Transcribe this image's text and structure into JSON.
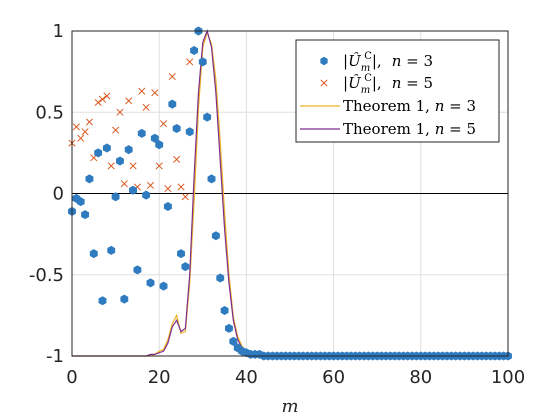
{
  "chart_data": {
    "type": "scatter",
    "xlabel": "m",
    "ylabel": "",
    "xlim": [
      0,
      100
    ],
    "ylim": [
      -1,
      1
    ],
    "xticks": [
      0,
      20,
      40,
      60,
      80,
      100
    ],
    "yticks": [
      -1,
      -0.5,
      0,
      0.5,
      1
    ],
    "xtick_labels": [
      "0",
      "20",
      "40",
      "60",
      "80",
      "100"
    ],
    "ytick_labels": [
      "-1",
      "-0.5",
      "0",
      "0.5",
      "1"
    ],
    "grid": true,
    "zero_line": 0,
    "legend_position": "top-right",
    "series": [
      {
        "name": "|Û_m^C|, n = 3",
        "legend_parts": [
          "|",
          "Û",
          "m",
          "C",
          "|,",
          "n",
          " = 3"
        ],
        "style": "markers",
        "marker": "hexagon",
        "color": "#2e7bbf",
        "x": [
          0,
          1,
          2,
          3,
          4,
          5,
          6,
          7,
          8,
          9,
          10,
          11,
          12,
          13,
          14,
          15,
          16,
          17,
          18,
          19,
          20,
          21,
          22,
          23,
          24,
          25,
          26,
          27,
          28,
          29,
          30,
          31,
          32,
          33,
          34,
          35,
          36,
          37,
          38,
          39,
          40,
          41,
          42,
          43,
          44,
          45,
          46,
          47,
          48,
          49,
          50,
          51,
          52,
          53,
          54,
          55,
          56,
          57,
          58,
          59,
          60,
          61,
          62,
          63,
          64,
          65,
          66,
          67,
          68,
          69,
          70,
          71,
          72,
          73,
          74,
          75,
          76,
          77,
          78,
          79,
          80,
          81,
          82,
          83,
          84,
          85,
          86,
          87,
          88,
          89,
          90,
          91,
          92,
          93,
          94,
          95,
          96,
          97,
          98,
          99,
          100
        ],
        "y": [
          -0.11,
          -0.03,
          -0.05,
          -0.13,
          0.09,
          -0.37,
          0.25,
          -0.66,
          0.28,
          -0.35,
          -0.02,
          0.2,
          -0.65,
          0.27,
          0.02,
          -0.47,
          0.37,
          -0.01,
          -0.55,
          0.34,
          0.3,
          -0.57,
          -0.08,
          0.55,
          0.4,
          -0.37,
          -0.45,
          0.38,
          0.88,
          1.0,
          0.81,
          0.47,
          0.09,
          -0.26,
          -0.52,
          -0.72,
          -0.83,
          -0.91,
          -0.95,
          -0.97,
          -0.98,
          -0.99,
          -0.99,
          -0.99,
          -1,
          -1,
          -1,
          -1,
          -1,
          -1,
          -1,
          -1,
          -1,
          -1,
          -1,
          -1,
          -1,
          -1,
          -1,
          -1,
          -1,
          -1,
          -1,
          -1,
          -1,
          -1,
          -1,
          -1,
          -1,
          -1,
          -1,
          -1,
          -1,
          -1,
          -1,
          -1,
          -1,
          -1,
          -1,
          -1,
          -1,
          -1,
          -1,
          -1,
          -1,
          -1,
          -1,
          -1,
          -1,
          -1,
          -1,
          -1,
          -1,
          -1,
          -1,
          -1,
          -1,
          -1,
          -1,
          -1,
          -1
        ]
      },
      {
        "name": "|Û_m^C|, n = 5",
        "legend_parts": [
          "|",
          "Û",
          "m",
          "C",
          "|,",
          "n",
          " = 5"
        ],
        "style": "markers",
        "marker": "x",
        "color": "#d95319",
        "x": [
          0,
          1,
          2,
          3,
          4,
          5,
          6,
          7,
          8,
          9,
          10,
          11,
          12,
          13,
          14,
          15,
          16,
          17,
          18,
          19,
          20,
          21,
          22,
          23,
          24,
          25,
          26,
          27
        ],
        "y": [
          0.31,
          0.41,
          0.34,
          0.38,
          0.44,
          0.22,
          0.56,
          0.58,
          0.6,
          0.17,
          0.39,
          0.5,
          0.06,
          0.57,
          0.17,
          0.04,
          0.63,
          0.53,
          0.05,
          0.62,
          0.17,
          0.43,
          0.03,
          0.72,
          0.21,
          0.04,
          -0.02,
          0.81
        ]
      },
      {
        "name": "Theorem 1, n = 3",
        "legend_parts": [
          "Theorem 1, ",
          "n",
          " = 3"
        ],
        "style": "line",
        "color": "#edb120",
        "x": [
          0,
          18,
          19,
          20,
          21,
          22,
          23,
          24,
          25,
          26,
          27,
          28,
          29,
          30,
          31,
          32,
          33,
          34,
          35,
          36,
          37,
          38,
          39,
          40,
          42,
          44,
          46,
          48,
          50,
          100
        ],
        "y": [
          -1,
          -1,
          -0.99,
          -0.97,
          -0.96,
          -0.9,
          -0.8,
          -0.75,
          -0.86,
          -0.85,
          -0.55,
          -0.05,
          0.52,
          0.9,
          0.99,
          0.92,
          0.7,
          0.32,
          -0.12,
          -0.5,
          -0.76,
          -0.88,
          -0.94,
          -0.97,
          -0.99,
          -1,
          -1,
          -1,
          -1,
          -1
        ]
      },
      {
        "name": "Theorem 1, n = 5",
        "legend_parts": [
          "Theorem 1, ",
          "n",
          " = 5"
        ],
        "style": "line",
        "color": "#7e2f8e",
        "x": [
          0,
          17,
          18,
          19,
          20,
          21,
          22,
          23,
          24,
          25,
          26,
          27,
          28,
          29,
          30,
          31,
          32,
          33,
          34,
          35,
          36,
          37,
          38,
          39,
          40,
          42,
          44,
          46,
          48,
          50,
          100
        ],
        "y": [
          -1,
          -1,
          -0.99,
          -0.99,
          -0.98,
          -0.97,
          -0.92,
          -0.82,
          -0.78,
          -0.85,
          -0.83,
          -0.5,
          0.1,
          0.62,
          0.93,
          1.0,
          0.9,
          0.62,
          0.2,
          -0.22,
          -0.55,
          -0.78,
          -0.9,
          -0.95,
          -0.97,
          -0.99,
          -1,
          -1,
          -1,
          -1,
          -1
        ]
      }
    ]
  }
}
